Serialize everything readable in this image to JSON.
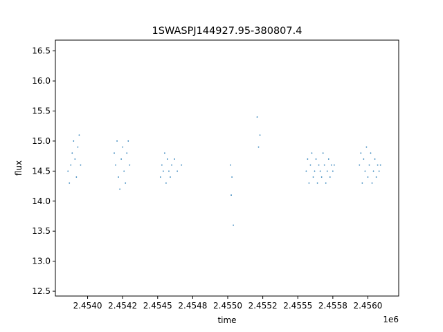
{
  "chart_data": {
    "type": "scatter",
    "title": "1SWASPJ144927.95-380807.4",
    "xlabel": "time",
    "ylabel": "flux",
    "x_offset_label": "1e6",
    "xlim": [
      2453770,
      2456220
    ],
    "ylim": [
      12.42,
      16.68
    ],
    "x_ticks": [
      2454000,
      2454250,
      2454500,
      2454750,
      2455000,
      2455250,
      2455500,
      2455750,
      2456000
    ],
    "x_tick_labels": [
      "2.4540",
      "2.4542",
      "2.4545",
      "2.4548",
      "2.4550",
      "2.4552",
      "2.4555",
      "2.4558",
      "2.4560"
    ],
    "y_ticks": [
      12.5,
      13.0,
      13.5,
      14.0,
      14.5,
      15.0,
      15.5,
      16.0,
      16.5
    ],
    "y_tick_labels": [
      "12.5",
      "13.0",
      "13.5",
      "14.0",
      "14.5",
      "15.0",
      "15.5",
      "16.0",
      "16.5"
    ],
    "grid": false,
    "marker_color": "#1f77b4",
    "series": [
      {
        "x": [
          2453860,
          2453870,
          2453880,
          2453890,
          2453900,
          2453910,
          2453920,
          2453930,
          2453940,
          2453950,
          2454190,
          2454200,
          2454210,
          2454220,
          2454230,
          2454240,
          2454250,
          2454260,
          2454270,
          2454280,
          2454290,
          2454300,
          2454520,
          2454530,
          2454540,
          2454550,
          2454560,
          2454570,
          2454580,
          2454590,
          2454600,
          2454620,
          2454640,
          2454670,
          2455020,
          2455025,
          2455030,
          2455040,
          2455210,
          2455220,
          2455230,
          2455560,
          2455570,
          2455580,
          2455590,
          2455600,
          2455610,
          2455620,
          2455630,
          2455640,
          2455650,
          2455660,
          2455670,
          2455680,
          2455690,
          2455700,
          2455710,
          2455720,
          2455730,
          2455740,
          2455750,
          2455760,
          2455940,
          2455950,
          2455960,
          2455970,
          2455980,
          2455990,
          2456000,
          2456010,
          2456020,
          2456030,
          2456040,
          2456050,
          2456060,
          2456070,
          2456080,
          2456090
        ],
        "y": [
          14.5,
          14.3,
          14.6,
          14.8,
          15.0,
          14.7,
          14.4,
          14.9,
          15.1,
          14.6,
          14.8,
          14.6,
          15.0,
          14.4,
          14.2,
          14.7,
          14.9,
          14.5,
          14.3,
          14.8,
          15.0,
          14.6,
          14.4,
          14.6,
          14.5,
          14.8,
          14.3,
          14.7,
          14.5,
          14.4,
          14.6,
          14.7,
          14.5,
          14.6,
          14.6,
          14.1,
          14.4,
          13.6,
          15.4,
          14.9,
          15.1,
          14.5,
          14.7,
          14.3,
          14.6,
          14.8,
          14.4,
          14.5,
          14.7,
          14.3,
          14.6,
          14.5,
          14.4,
          14.8,
          14.6,
          14.3,
          14.5,
          14.7,
          14.4,
          14.6,
          14.5,
          14.6,
          14.6,
          14.8,
          14.3,
          14.7,
          14.5,
          14.9,
          14.4,
          14.6,
          14.8,
          14.3,
          14.5,
          14.7,
          14.4,
          14.6,
          14.5,
          14.6
        ]
      }
    ]
  }
}
